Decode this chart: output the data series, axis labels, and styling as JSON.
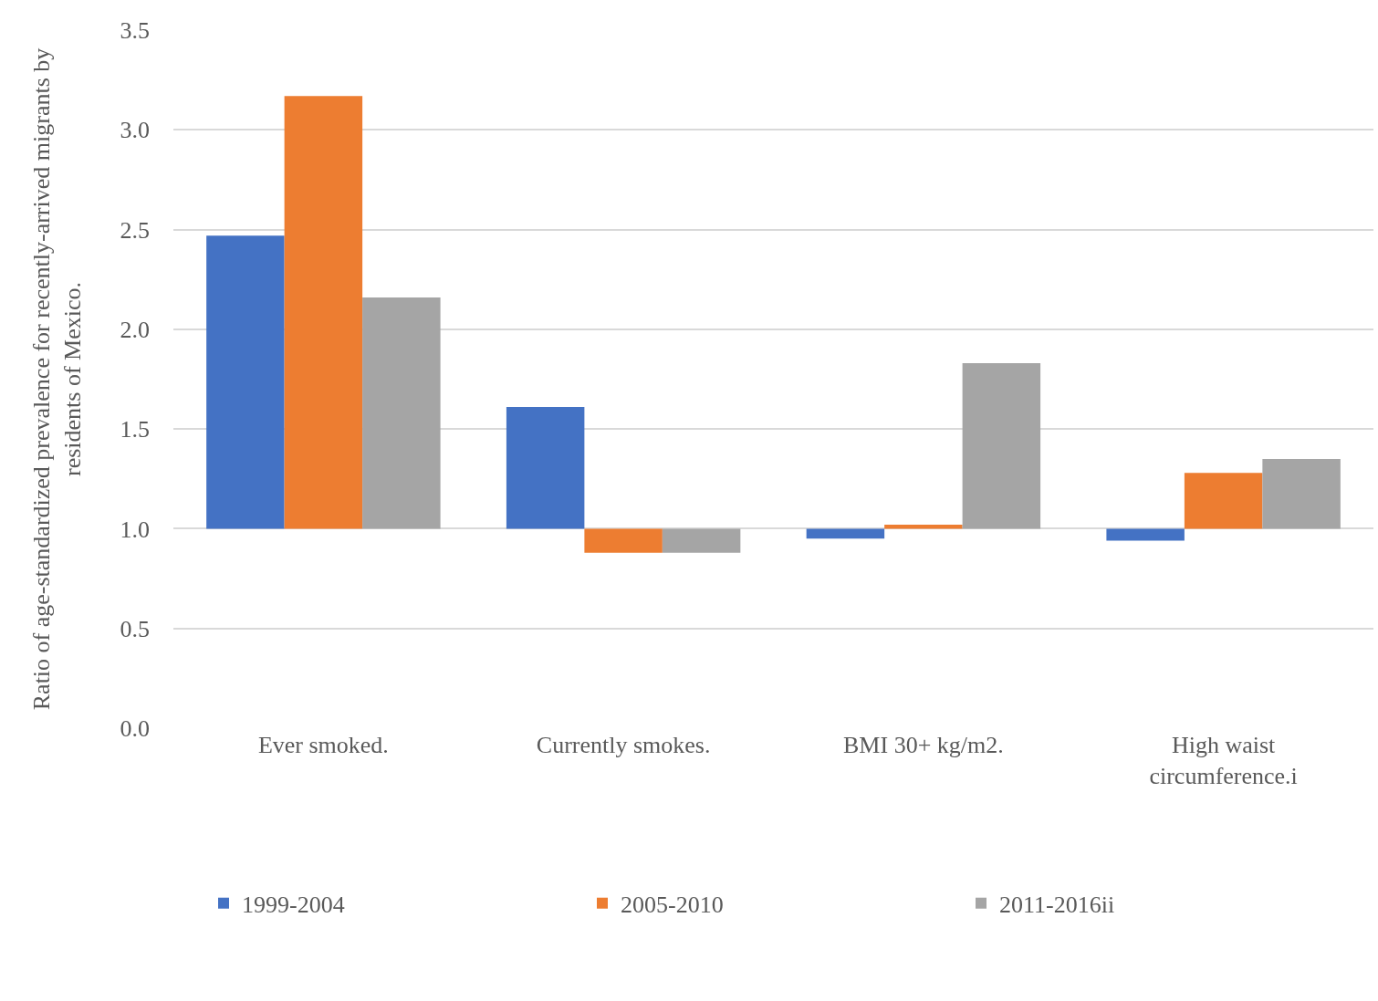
{
  "chart_data": {
    "type": "bar",
    "ylabel": "Ratio of age-standardized prevalence for recently-arrived migrants by\nresidents of Mexico.",
    "categories": [
      "Ever smoked.",
      "Currently smokes.",
      "BMI 30+ kg/m2.",
      "High waist\ncircumference.i"
    ],
    "series": [
      {
        "name": "1999-2004",
        "color": "#4472c4",
        "base": [
          1.0,
          1.0,
          1.0,
          1.0
        ],
        "values": [
          1.47,
          0.61,
          -0.05,
          -0.06
        ]
      },
      {
        "name": "2005-2010",
        "color": "#ed7d31",
        "base": [
          1.0,
          1.0,
          1.0,
          1.0
        ],
        "values": [
          2.17,
          -0.12,
          0.02,
          0.28
        ]
      },
      {
        "name": "2011-2016ii",
        "color": "#a5a5a5",
        "base": [
          1.0,
          1.0,
          1.0,
          1.0
        ],
        "values": [
          1.16,
          -0.12,
          0.83,
          0.35
        ]
      }
    ],
    "ylim": [
      0,
      3.5
    ],
    "yticks": [
      {
        "value": 0,
        "label": "0.0"
      },
      {
        "value": 0.5,
        "label": "0.5"
      },
      {
        "value": 1,
        "label": "1.0"
      },
      {
        "value": 1.5,
        "label": "1.5"
      },
      {
        "value": 2,
        "label": "2.0"
      },
      {
        "value": 2.5,
        "label": "2.5"
      },
      {
        "value": 3,
        "label": "3.0"
      },
      {
        "value": 3.5,
        "label": "3.5"
      }
    ],
    "grid": "y",
    "legend": "bottom"
  }
}
